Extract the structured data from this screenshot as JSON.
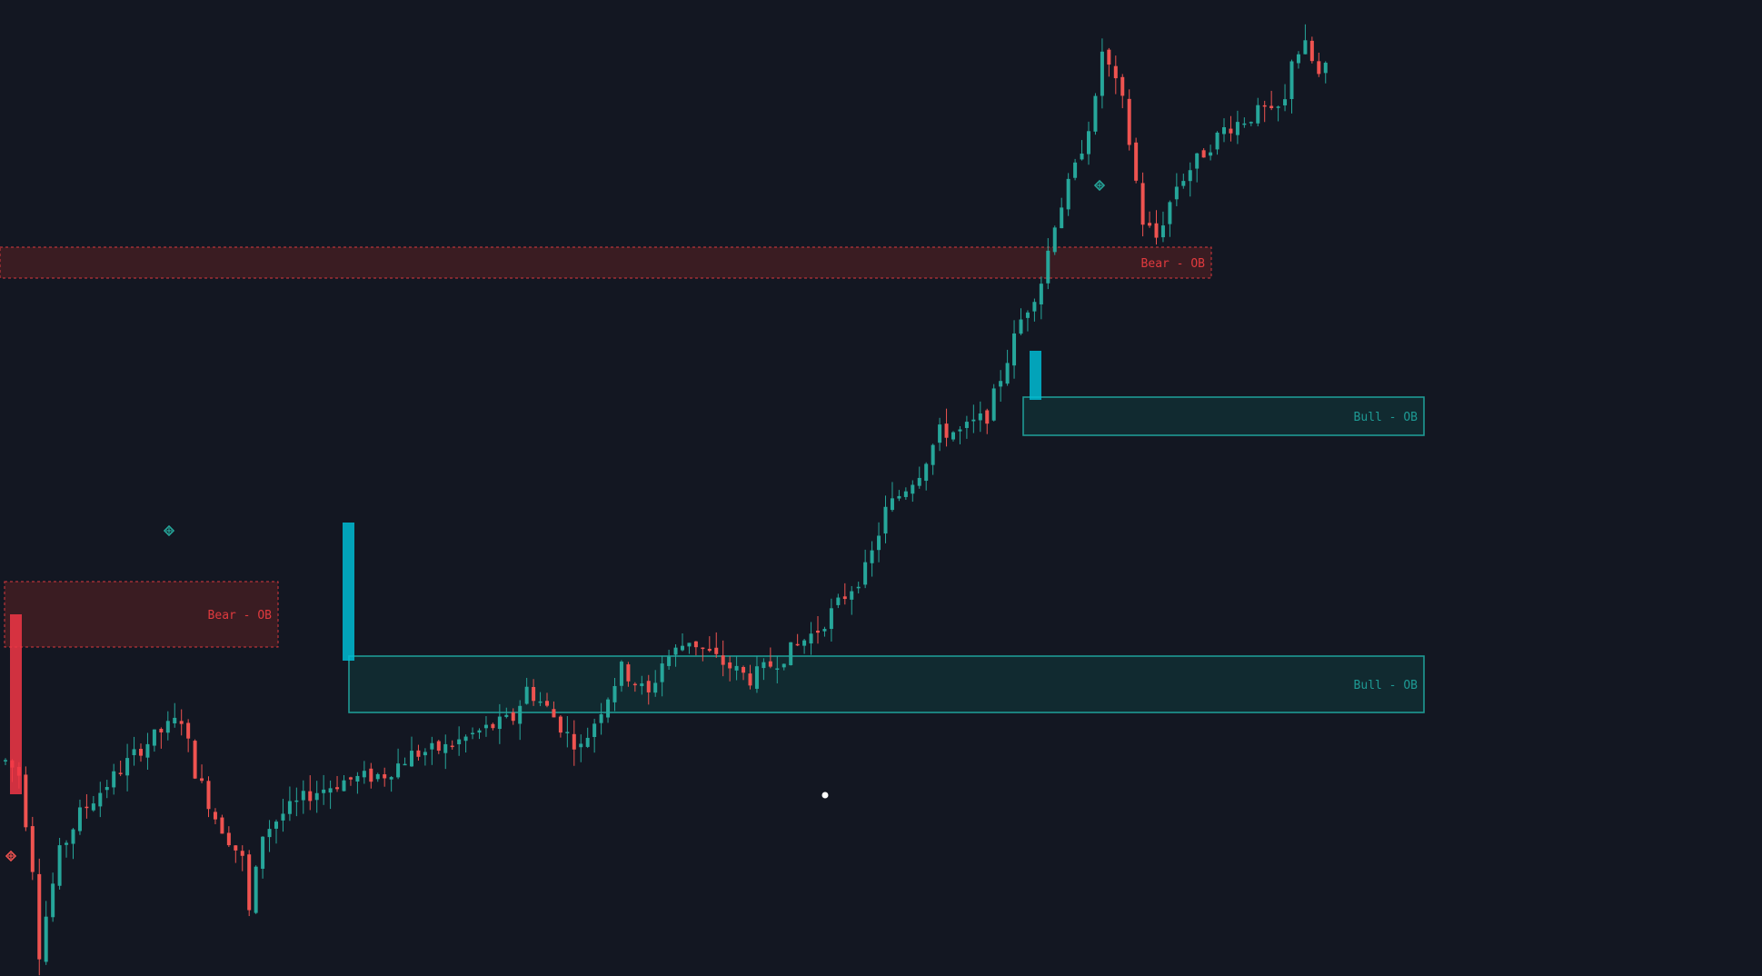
{
  "colors": {
    "background": "#131722",
    "bull": "#26a69a",
    "bear": "#ef5350",
    "bull_zone_fill": "#112a30",
    "bull_zone_stroke": "#1e9a94",
    "bear_zone_fill": "#3a1c22",
    "bear_zone_stroke": "#d9393d",
    "highlight_bull": "#00bcd4",
    "highlight_bear": "#f23645",
    "cursor": "#ffffff"
  },
  "chart_data": {
    "type": "candlestick",
    "title": "",
    "xlabel": "",
    "ylabel": "",
    "grid": false,
    "legend": "none",
    "price_range": [
      0,
      100
    ],
    "bar_count": 196,
    "trend_anchors": [
      [
        0,
        62
      ],
      [
        2,
        58
      ],
      [
        4,
        30
      ],
      [
        5,
        4
      ],
      [
        6,
        15
      ],
      [
        8,
        34
      ],
      [
        11,
        46
      ],
      [
        15,
        55
      ],
      [
        20,
        66
      ],
      [
        23,
        71
      ],
      [
        26,
        75
      ],
      [
        28,
        59
      ],
      [
        31,
        45
      ],
      [
        35,
        32
      ],
      [
        36,
        16
      ],
      [
        38,
        40
      ],
      [
        41,
        46
      ],
      [
        45,
        52
      ],
      [
        50,
        56
      ],
      [
        56,
        58
      ],
      [
        60,
        64
      ],
      [
        65,
        66
      ],
      [
        70,
        71
      ],
      [
        75,
        75
      ],
      [
        77,
        84
      ],
      [
        80,
        78
      ],
      [
        83,
        70
      ],
      [
        85,
        66
      ],
      [
        88,
        78
      ],
      [
        91,
        90
      ],
      [
        95,
        82
      ],
      [
        97,
        92
      ],
      [
        101,
        99
      ],
      [
        105,
        93
      ],
      [
        110,
        87
      ],
      [
        115,
        94
      ],
      [
        120,
        102
      ],
      [
        127,
        120
      ],
      [
        128,
        125
      ],
      [
        130,
        138
      ],
      [
        135,
        150
      ],
      [
        138,
        162
      ],
      [
        141,
        162
      ],
      [
        145,
        167
      ],
      [
        150,
        196
      ],
      [
        153,
        208
      ],
      [
        155,
        226
      ],
      [
        158,
        242
      ],
      [
        161,
        262
      ],
      [
        162,
        278
      ],
      [
        165,
        262
      ],
      [
        168,
        226
      ],
      [
        170,
        221
      ],
      [
        173,
        237
      ],
      [
        177,
        247
      ],
      [
        180,
        254
      ],
      [
        184,
        258
      ],
      [
        186,
        260
      ],
      [
        187,
        258
      ],
      [
        189,
        262
      ],
      [
        190,
        276
      ],
      [
        192,
        279
      ],
      [
        194,
        270
      ],
      [
        195,
        272
      ]
    ],
    "trend_scale_note": "price units, 0-280",
    "order_blocks": [
      {
        "kind": "bear",
        "label": "Bear - OB",
        "top_price": 161,
        "bottom_price": 154,
        "start_bar": 0,
        "end_bar": 178
      },
      {
        "kind": "bull",
        "label": "Bull - OB",
        "top_price": 129,
        "bottom_price": 121,
        "start_bar": 151,
        "end_bar": 210
      },
      {
        "kind": "bear",
        "label": "Bear - OB",
        "top_price": 85,
        "bottom_price": 70,
        "start_bar": 0,
        "end_bar": 40
      },
      {
        "kind": "bull",
        "label": "Bull - OB",
        "top_price": 70,
        "bottom_price": 57,
        "start_bar": 51,
        "end_bar": 210
      }
    ],
    "highlight_bars": [
      {
        "kind": "bear",
        "bar": 2,
        "open": 77,
        "close": 38
      },
      {
        "kind": "bull",
        "bar": 51,
        "open": 70,
        "close": 99
      },
      {
        "kind": "bull",
        "bar": 152,
        "open": 129,
        "close": 140
      }
    ],
    "markers": [
      {
        "kind": "bull",
        "bar": 25,
        "price": 104
      },
      {
        "kind": "bear",
        "bar": 1,
        "price": 27
      },
      {
        "kind": "bull",
        "bar": 162,
        "price": 176
      }
    ]
  },
  "zones": {
    "bear_top_label": "Bear - OB",
    "bull_top_label": "Bull - OB",
    "bear_low_label": "Bear - OB",
    "bull_low_label": "Bull - OB"
  },
  "marker_icon": "diamond-cross-icon",
  "cursor_icon": "crosshair-dot-icon"
}
